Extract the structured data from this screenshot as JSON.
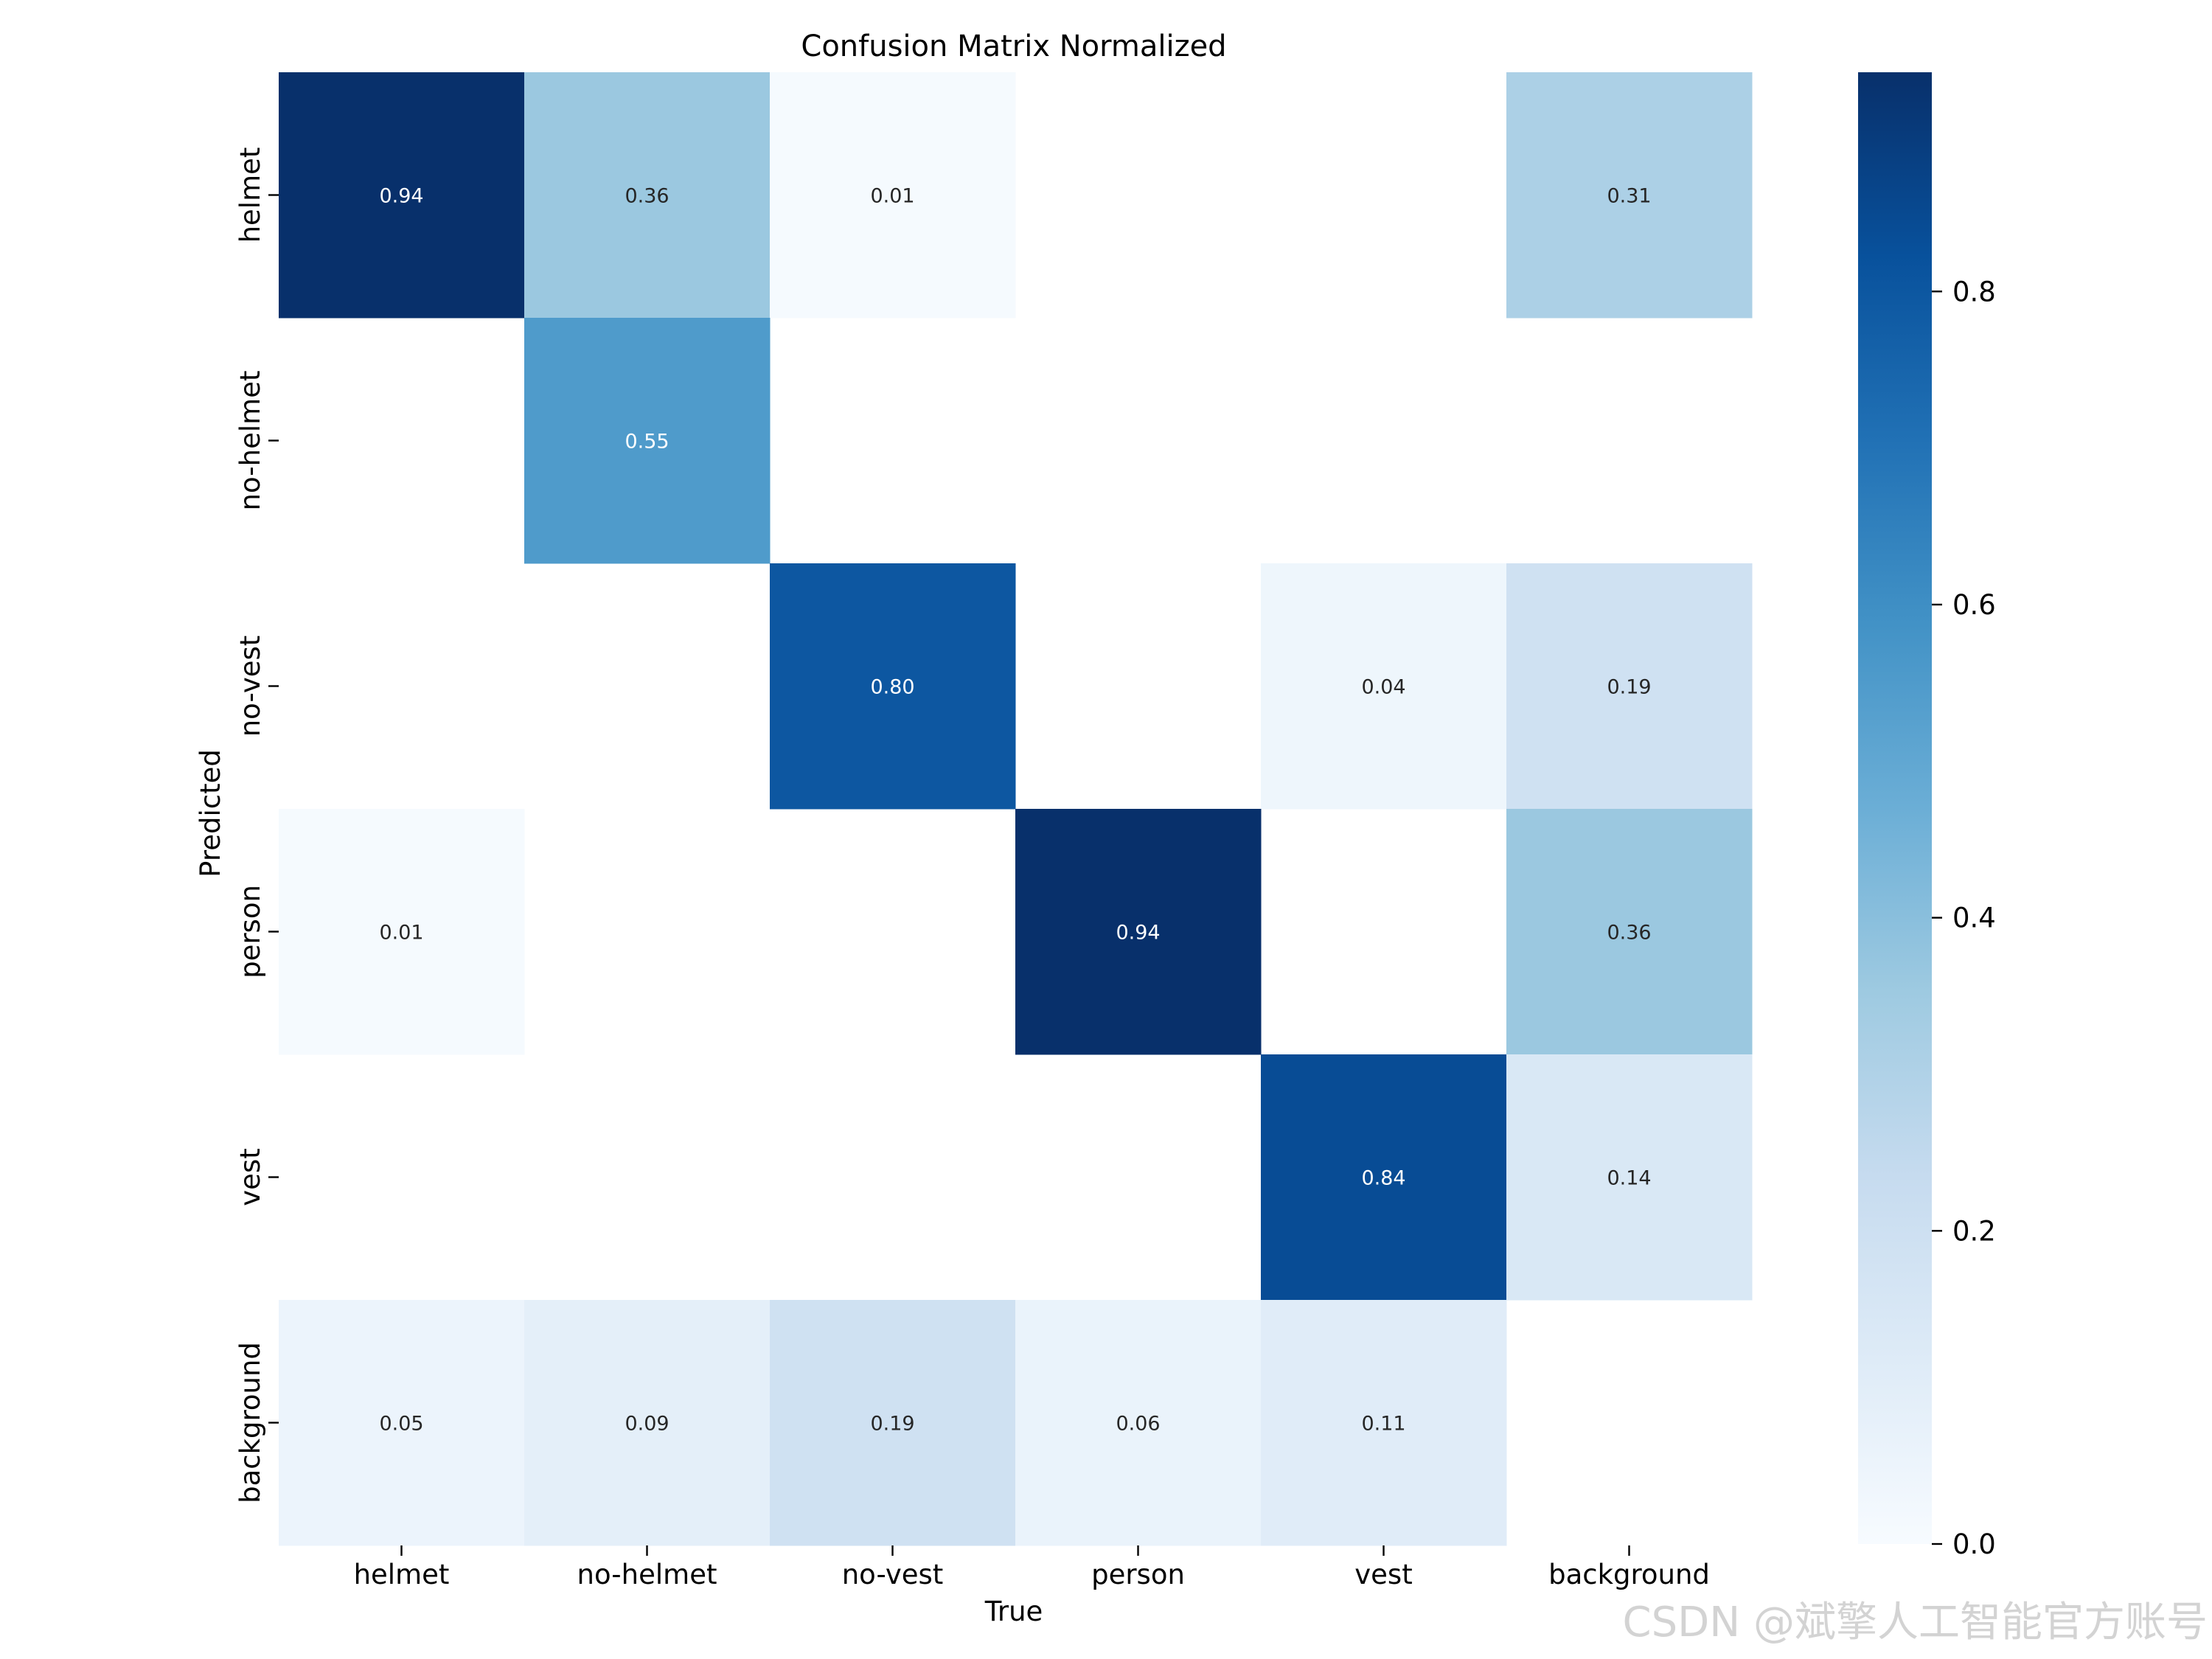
{
  "chart_data": {
    "type": "heatmap",
    "title": "Confusion Matrix Normalized",
    "xlabel": "True",
    "ylabel": "Predicted",
    "x_categories": [
      "helmet",
      "no-helmet",
      "no-vest",
      "person",
      "vest",
      "background"
    ],
    "y_categories": [
      "helmet",
      "no-helmet",
      "no-vest",
      "person",
      "vest",
      "background"
    ],
    "values": [
      [
        0.94,
        0.36,
        0.01,
        null,
        null,
        0.31
      ],
      [
        null,
        0.55,
        null,
        null,
        null,
        null
      ],
      [
        null,
        null,
        0.8,
        null,
        0.04,
        0.19
      ],
      [
        0.01,
        null,
        null,
        0.94,
        null,
        0.36
      ],
      [
        null,
        null,
        null,
        null,
        0.84,
        0.14
      ],
      [
        0.05,
        0.09,
        0.19,
        0.06,
        0.11,
        null
      ]
    ],
    "value_format": "2 decimals",
    "colormap": "Blues",
    "colorbar": {
      "min": 0.0,
      "max": 0.94,
      "ticks": [
        0.0,
        0.2,
        0.4,
        0.6,
        0.8
      ],
      "tick_labels": [
        "0.0",
        "0.2",
        "0.4",
        "0.6",
        "0.8"
      ]
    },
    "annotation_text_dark": "#262626",
    "annotation_text_light": "#ffffff"
  },
  "watermark": "CSDN @斌擎人工智能官方账号"
}
